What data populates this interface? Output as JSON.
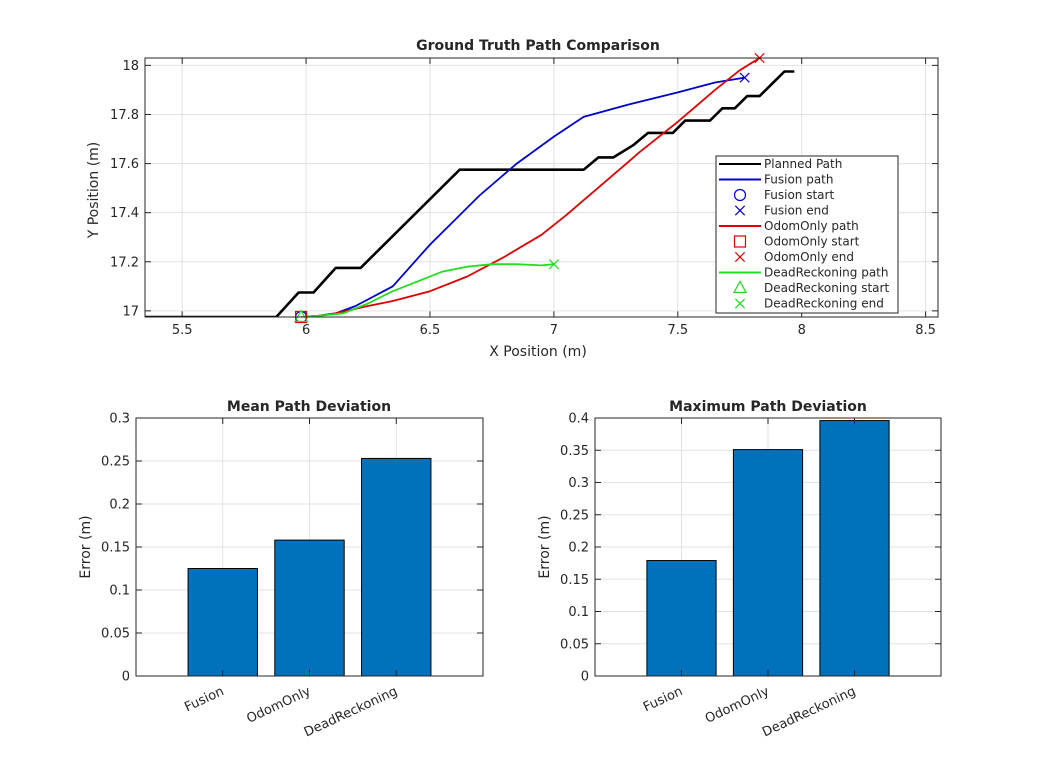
{
  "chart_data": [
    {
      "type": "line",
      "title": "Ground Truth Path Comparison",
      "xlabel": "X Position (m)",
      "ylabel": "Y Position (m)",
      "xlim": [
        5.35,
        8.55
      ],
      "ylim": [
        16.975,
        18.03
      ],
      "xticks": [
        5.5,
        6,
        6.5,
        7,
        7.5,
        8,
        8.5
      ],
      "xtick_labels": [
        "5.5",
        "6",
        "6.5",
        "7",
        "7.5",
        "8",
        "8.5"
      ],
      "yticks": [
        17,
        17.2,
        17.4,
        17.6,
        17.8,
        18
      ],
      "ytick_labels": [
        "17",
        "17.2",
        "17.4",
        "17.6",
        "17.8",
        "18"
      ],
      "grid": true,
      "legend_position": "right",
      "legend": [
        {
          "label": "Planned Path",
          "color": "#000000",
          "kind": "line"
        },
        {
          "label": "Fusion path",
          "color": "#0000cc",
          "kind": "line"
        },
        {
          "label": "Fusion start",
          "color": "#0000cc",
          "kind": "circle"
        },
        {
          "label": "Fusion end",
          "color": "#0000cc",
          "kind": "x"
        },
        {
          "label": "OdomOnly path",
          "color": "#dd0000",
          "kind": "line"
        },
        {
          "label": "OdomOnly start",
          "color": "#dd0000",
          "kind": "square"
        },
        {
          "label": "OdomOnly end",
          "color": "#dd0000",
          "kind": "x"
        },
        {
          "label": "DeadReckoning path",
          "color": "#22dd22",
          "kind": "line"
        },
        {
          "label": "DeadReckoning start",
          "color": "#22dd22",
          "kind": "triangle"
        },
        {
          "label": "DeadReckoning end",
          "color": "#22dd22",
          "kind": "x"
        }
      ],
      "series": [
        {
          "name": "Planned Path",
          "color": "#000000",
          "x": [
            5.35,
            5.88,
            5.97,
            6.03,
            6.12,
            6.22,
            6.62,
            7.12,
            7.18,
            7.24,
            7.32,
            7.38,
            7.48,
            7.53,
            7.63,
            7.68,
            7.73,
            7.78,
            7.83,
            7.88,
            7.93,
            7.97
          ],
          "y": [
            16.975,
            16.975,
            17.075,
            17.075,
            17.175,
            17.175,
            17.575,
            17.575,
            17.625,
            17.625,
            17.675,
            17.725,
            17.725,
            17.775,
            17.775,
            17.825,
            17.825,
            17.875,
            17.875,
            17.925,
            17.975,
            17.975
          ]
        },
        {
          "name": "Fusion path",
          "color": "#0000cc",
          "x": [
            5.98,
            6.05,
            6.12,
            6.2,
            6.35,
            6.5,
            6.7,
            6.85,
            7.0,
            7.12,
            7.3,
            7.5,
            7.65,
            7.77
          ],
          "y": [
            16.975,
            16.98,
            16.99,
            17.02,
            17.1,
            17.27,
            17.47,
            17.6,
            17.71,
            17.79,
            17.84,
            17.89,
            17.93,
            17.95
          ]
        },
        {
          "name": "OdomOnly path",
          "color": "#dd0000",
          "x": [
            5.98,
            6.05,
            6.12,
            6.25,
            6.35,
            6.5,
            6.65,
            6.8,
            6.95,
            7.05,
            7.2,
            7.35,
            7.5,
            7.65,
            7.75,
            7.83
          ],
          "y": [
            16.975,
            16.98,
            16.99,
            17.02,
            17.04,
            17.08,
            17.14,
            17.22,
            17.31,
            17.39,
            17.52,
            17.65,
            17.77,
            17.9,
            17.98,
            18.03
          ]
        },
        {
          "name": "DeadReckoning path",
          "color": "#22dd22",
          "x": [
            5.98,
            6.05,
            6.15,
            6.25,
            6.35,
            6.45,
            6.55,
            6.65,
            6.75,
            6.85,
            6.95,
            7.0
          ],
          "y": [
            16.975,
            16.98,
            16.99,
            17.03,
            17.08,
            17.12,
            17.16,
            17.18,
            17.19,
            17.19,
            17.185,
            17.19
          ]
        }
      ],
      "markers": [
        {
          "series": "Fusion start",
          "kind": "circle",
          "color": "#0000cc",
          "x": 5.98,
          "y": 16.975
        },
        {
          "series": "Fusion end",
          "kind": "x",
          "color": "#0000cc",
          "x": 7.77,
          "y": 17.95
        },
        {
          "series": "OdomOnly start",
          "kind": "square",
          "color": "#dd0000",
          "x": 5.98,
          "y": 16.975
        },
        {
          "series": "OdomOnly end",
          "kind": "x",
          "color": "#dd0000",
          "x": 7.83,
          "y": 18.03
        },
        {
          "series": "DeadReckoning start",
          "kind": "triangle",
          "color": "#22dd22",
          "x": 5.98,
          "y": 16.975
        },
        {
          "series": "DeadReckoning end",
          "kind": "x",
          "color": "#22dd22",
          "x": 7.0,
          "y": 17.19
        }
      ]
    },
    {
      "type": "bar",
      "title": "Mean Path Deviation",
      "xlabel": "",
      "ylabel": "Error (m)",
      "categories": [
        "Fusion",
        "OdomOnly",
        "DeadReckoning"
      ],
      "values": [
        0.125,
        0.158,
        0.253
      ],
      "ylim": [
        0,
        0.3
      ],
      "yticks": [
        0,
        0.05,
        0.1,
        0.15,
        0.2,
        0.25,
        0.3
      ],
      "ytick_labels": [
        "0",
        "0.05",
        "0.1",
        "0.15",
        "0.2",
        "0.25",
        "0.3"
      ],
      "bar_color": "#0072bd",
      "grid": true
    },
    {
      "type": "bar",
      "title": "Maximum Path Deviation",
      "xlabel": "",
      "ylabel": "Error (m)",
      "categories": [
        "Fusion",
        "OdomOnly",
        "DeadReckoning"
      ],
      "values": [
        0.179,
        0.351,
        0.396
      ],
      "ylim": [
        0,
        0.4
      ],
      "yticks": [
        0,
        0.05,
        0.1,
        0.15,
        0.2,
        0.25,
        0.3,
        0.35,
        0.4
      ],
      "ytick_labels": [
        "0",
        "0.05",
        "0.1",
        "0.15",
        "0.2",
        "0.25",
        "0.3",
        "0.35",
        "0.4"
      ],
      "bar_color": "#0072bd",
      "grid": true
    }
  ]
}
